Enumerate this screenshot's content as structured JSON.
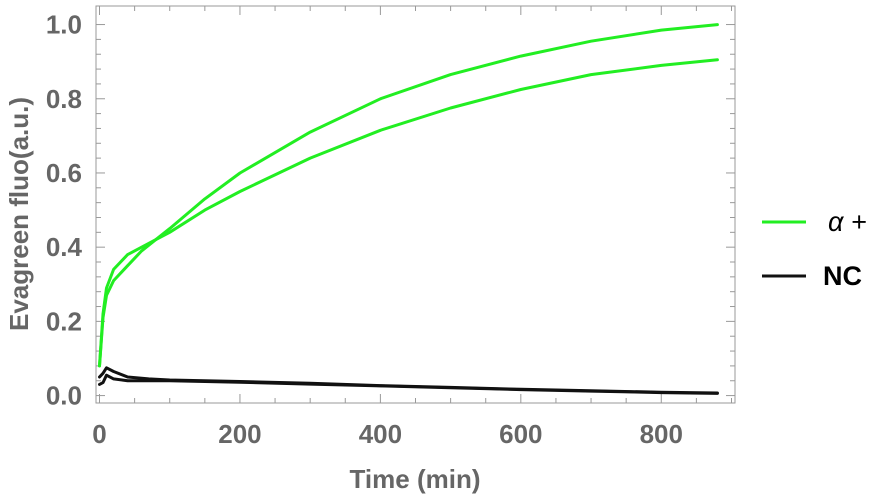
{
  "chart_data": {
    "type": "line",
    "xlabel": "Time (min)",
    "ylabel": "Evagreen fluo(a.u.)",
    "xlim": [
      -5,
      905
    ],
    "ylim": [
      -0.02,
      1.05
    ],
    "x_ticks": [
      0,
      200,
      400,
      600,
      800
    ],
    "x_tick_labels": [
      "0",
      "200",
      "400",
      "600",
      "800"
    ],
    "y_ticks": [
      0.0,
      0.2,
      0.4,
      0.6,
      0.8,
      1.0
    ],
    "y_tick_labels": [
      "0.0",
      "0.2",
      "0.4",
      "0.6",
      "0.8",
      "1.0"
    ],
    "grid": false,
    "legend_placement": "right",
    "legend": [
      {
        "label": "α +",
        "color": "#22ee22"
      },
      {
        "label": "NC",
        "color": "#111111"
      }
    ],
    "series": [
      {
        "group": "α +",
        "color": "#22ee22",
        "x": [
          0,
          5,
          10,
          20,
          40,
          60,
          80,
          100,
          150,
          200,
          300,
          400,
          500,
          600,
          700,
          800,
          880
        ],
        "y": [
          0.08,
          0.22,
          0.29,
          0.34,
          0.38,
          0.4,
          0.42,
          0.45,
          0.53,
          0.6,
          0.71,
          0.8,
          0.865,
          0.915,
          0.955,
          0.985,
          1.0
        ]
      },
      {
        "group": "α +",
        "color": "#22ee22",
        "x": [
          0,
          5,
          10,
          20,
          40,
          60,
          80,
          100,
          150,
          200,
          300,
          400,
          500,
          600,
          700,
          800,
          880
        ],
        "y": [
          0.08,
          0.21,
          0.27,
          0.31,
          0.35,
          0.39,
          0.42,
          0.44,
          0.5,
          0.55,
          0.64,
          0.715,
          0.775,
          0.825,
          0.865,
          0.89,
          0.905
        ]
      },
      {
        "group": "NC",
        "color": "#111111",
        "x": [
          0,
          5,
          10,
          20,
          40,
          70,
          100,
          200,
          300,
          400,
          500,
          600,
          700,
          800,
          880
        ],
        "y": [
          0.05,
          0.06,
          0.075,
          0.065,
          0.05,
          0.045,
          0.042,
          0.038,
          0.033,
          0.027,
          0.022,
          0.017,
          0.013,
          0.009,
          0.007
        ]
      },
      {
        "group": "NC",
        "color": "#111111",
        "x": [
          0,
          5,
          10,
          20,
          40,
          70,
          100,
          200,
          300,
          400,
          500,
          600,
          700,
          800,
          880
        ],
        "y": [
          0.03,
          0.035,
          0.055,
          0.045,
          0.04,
          0.04,
          0.04,
          0.036,
          0.031,
          0.026,
          0.021,
          0.016,
          0.012,
          0.008,
          0.006
        ]
      }
    ]
  }
}
